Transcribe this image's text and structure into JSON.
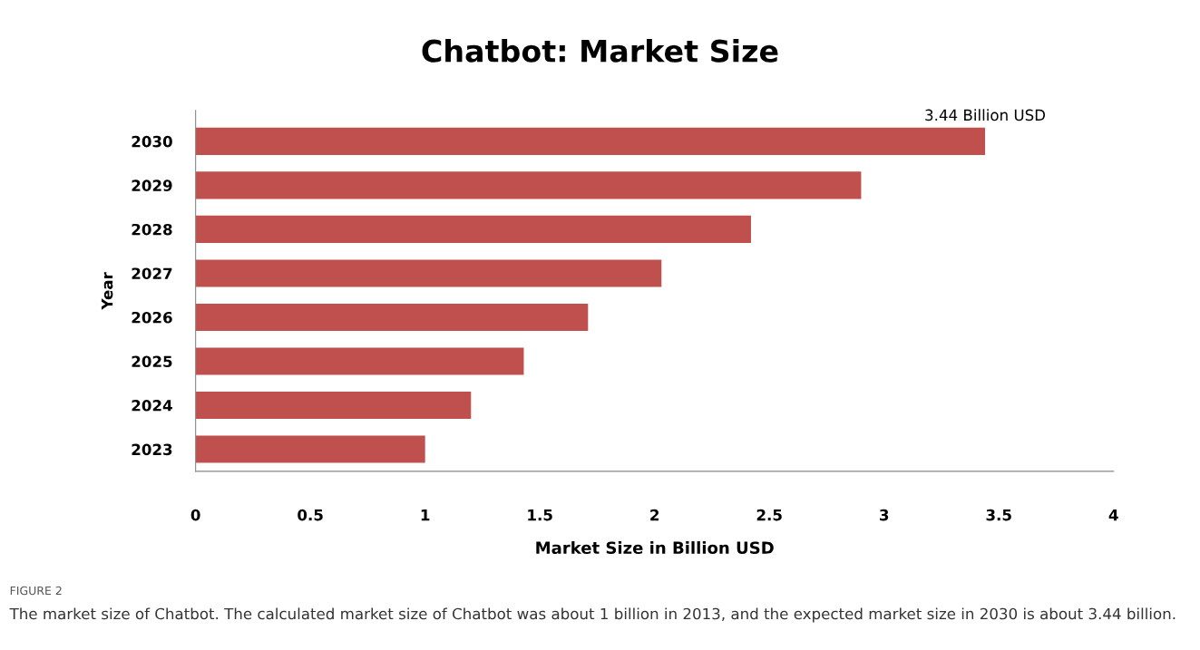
{
  "chart_data": {
    "type": "bar",
    "orientation": "horizontal",
    "title": "Chatbot: Market Size",
    "xlabel": "Market Size in Billion USD",
    "ylabel": "Year",
    "categories": [
      "2030",
      "2029",
      "2028",
      "2027",
      "2026",
      "2025",
      "2024",
      "2023"
    ],
    "values": [
      3.44,
      2.9,
      2.42,
      2.03,
      1.71,
      1.43,
      1.2,
      1.0
    ],
    "color": "#c0504d",
    "xlim": [
      0,
      4
    ],
    "xticks": [
      0,
      0.5,
      1,
      1.5,
      2,
      2.5,
      3,
      3.5,
      4
    ],
    "grid": false,
    "annotations": [
      {
        "text": "3.44 Billion USD",
        "x": 3.44,
        "y": "2030"
      },
      "FIGURE 2",
      "The market size of Chatbot. The calculated market size of Chatbot was about 1 billion in 2013, and the expected market size in 2030 is about 3.44 billion."
    ]
  }
}
